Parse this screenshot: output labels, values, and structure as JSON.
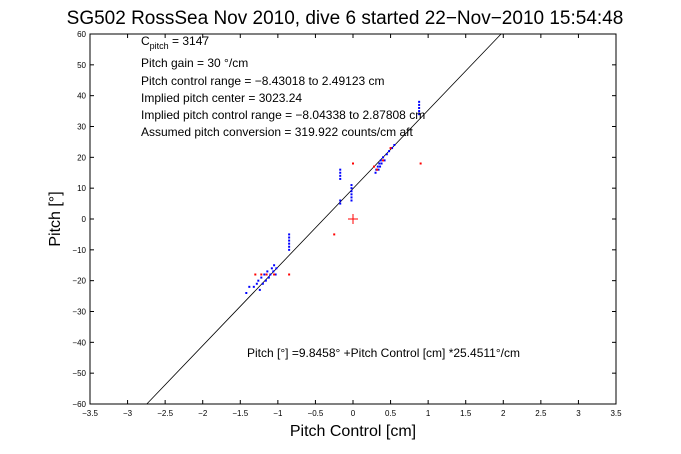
{
  "chart_data": {
    "type": "scatter",
    "title": "SG502 RossSea Nov 2010, dive 6 started 22−Nov−2010 15:54:48",
    "xlabel": "Pitch Control [cm]",
    "ylabel": "Pitch [°]",
    "xlim": [
      -3.5,
      3.5
    ],
    "ylim": [
      -60,
      60
    ],
    "xticks": [
      -3.5,
      -3,
      -2.5,
      -2,
      -1.5,
      -1,
      -0.5,
      0,
      0.5,
      1,
      1.5,
      2,
      2.5,
      3,
      3.5
    ],
    "yticks": [
      -60,
      -50,
      -40,
      -30,
      -20,
      -10,
      0,
      10,
      20,
      30,
      40,
      50,
      60
    ],
    "xtick_labels": [
      "−3.5",
      "−3",
      "−2.5",
      "−2",
      "−1.5",
      "−1",
      "−0.5",
      "0",
      "0.5",
      "1",
      "1.5",
      "2",
      "2.5",
      "3",
      "3.5"
    ],
    "ytick_labels": [
      "−60",
      "−50",
      "−40",
      "−30",
      "−20",
      "−10",
      "0",
      "10",
      "20",
      "30",
      "40",
      "50",
      "60"
    ],
    "grid": false,
    "annotations": {
      "c_pitch_main": "C",
      "c_pitch_sub": "pitch",
      "c_pitch_value": " = 3147",
      "lines": [
        "Pitch gain = 30 °/cm",
        "Pitch control range = −8.43018 to 2.49123 cm",
        "Implied pitch center = 3023.24",
        "Implied pitch control range = −8.04338 to 2.87808 cm",
        "Assumed pitch conversion = 319.922 counts/cm aft"
      ],
      "fit_equation": "Pitch [°] =9.8458° +Pitch Control [cm] *25.4511°/cm"
    },
    "fit_line": {
      "intercept": 9.8458,
      "slope": 25.4511,
      "color": "#000000"
    },
    "center_marker": {
      "x": 0.0,
      "y": 0.0,
      "color": "#ff0000"
    },
    "series": [
      {
        "color": "#0000ff",
        "points": [
          [
            -1.42,
            -24
          ],
          [
            -1.38,
            -22
          ],
          [
            -1.32,
            -22
          ],
          [
            -1.28,
            -21
          ],
          [
            -1.26,
            -20
          ],
          [
            -1.24,
            -23
          ],
          [
            -1.22,
            -19
          ],
          [
            -1.2,
            -21
          ],
          [
            -1.18,
            -18
          ],
          [
            -1.16,
            -20
          ],
          [
            -1.14,
            -17
          ],
          [
            -1.12,
            -19
          ],
          [
            -1.1,
            -18
          ],
          [
            -1.08,
            -16
          ],
          [
            -1.06,
            -17
          ],
          [
            -1.05,
            -15
          ],
          [
            -1.03,
            -18
          ],
          [
            -1.02,
            -16
          ],
          [
            -0.85,
            -5
          ],
          [
            -0.85,
            -6
          ],
          [
            -0.85,
            -7
          ],
          [
            -0.85,
            -8
          ],
          [
            -0.85,
            -9
          ],
          [
            -0.85,
            -10
          ],
          [
            -0.17,
            5
          ],
          [
            -0.17,
            6
          ],
          [
            -0.17,
            13
          ],
          [
            -0.17,
            14
          ],
          [
            -0.17,
            15
          ],
          [
            -0.17,
            16
          ],
          [
            -0.02,
            6
          ],
          [
            -0.02,
            7
          ],
          [
            -0.02,
            8
          ],
          [
            -0.02,
            9
          ],
          [
            -0.02,
            10
          ],
          [
            -0.02,
            11
          ],
          [
            0.3,
            15
          ],
          [
            0.31,
            16
          ],
          [
            0.33,
            17
          ],
          [
            0.34,
            16
          ],
          [
            0.35,
            18
          ],
          [
            0.36,
            17
          ],
          [
            0.37,
            19
          ],
          [
            0.38,
            18
          ],
          [
            0.4,
            20
          ],
          [
            0.42,
            19
          ],
          [
            0.45,
            21
          ],
          [
            0.48,
            22
          ],
          [
            0.52,
            23
          ],
          [
            0.55,
            24
          ],
          [
            0.88,
            34
          ],
          [
            0.88,
            35
          ],
          [
            0.88,
            36
          ],
          [
            0.88,
            37
          ],
          [
            0.88,
            38
          ]
        ]
      },
      {
        "color": "#ff0000",
        "points": [
          [
            -1.3,
            -18
          ],
          [
            -1.22,
            -18
          ],
          [
            -1.15,
            -18
          ],
          [
            -1.05,
            -18
          ],
          [
            -0.85,
            -18
          ],
          [
            -0.25,
            -5
          ],
          [
            0.0,
            18
          ],
          [
            0.28,
            17
          ],
          [
            0.32,
            16
          ],
          [
            0.4,
            19
          ],
          [
            0.5,
            23
          ],
          [
            0.9,
            18
          ]
        ]
      }
    ]
  }
}
